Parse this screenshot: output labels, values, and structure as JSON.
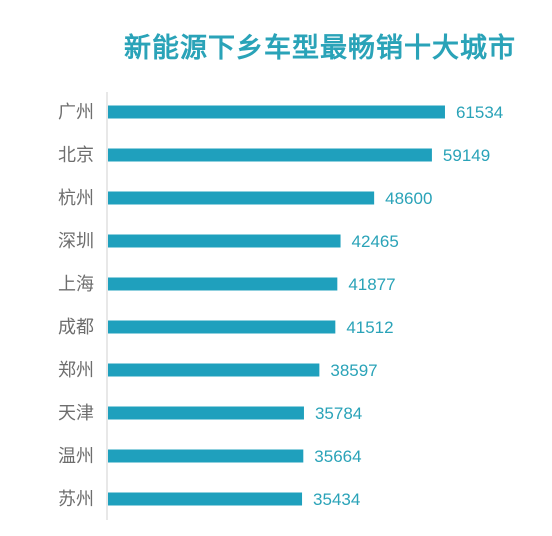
{
  "chart_data": {
    "type": "bar",
    "orientation": "horizontal",
    "title": "新能源下乡车型最畅销十大城市",
    "categories": [
      "广州",
      "北京",
      "杭州",
      "深圳",
      "上海",
      "成都",
      "郑州",
      "天津",
      "温州",
      "苏州"
    ],
    "values": [
      61534,
      59149,
      48600,
      42465,
      41877,
      41512,
      38597,
      35784,
      35664,
      35434
    ],
    "xlim": [
      0,
      63000
    ],
    "grid": false,
    "legend": "none",
    "bar_color": "#1fa0bd",
    "label_color": "#2aa3b8",
    "title_color": "#2aa3b8"
  }
}
